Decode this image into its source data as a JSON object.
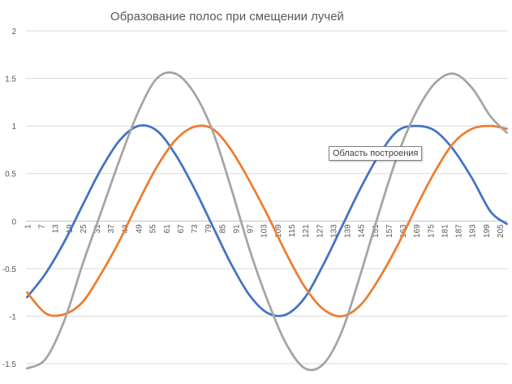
{
  "chart_data": {
    "type": "line",
    "title": "Образование полос при смещении лучей",
    "ylim": [
      -1.5,
      2
    ],
    "yticks": [
      "-1.5",
      "-1",
      "-0.5",
      "0",
      "0.5",
      "1",
      "1.5",
      "2"
    ],
    "yticks_values": [
      -1.5,
      -1,
      -0.5,
      0,
      0.5,
      1,
      1.5,
      2
    ],
    "x_first": 1,
    "x_last": 208,
    "x_step_labels": 6,
    "xticks": [
      "1",
      "7",
      "13",
      "19",
      "25",
      "31",
      "37",
      "43",
      "49",
      "55",
      "61",
      "67",
      "73",
      "79",
      "85",
      "91",
      "97",
      "103",
      "109",
      "115",
      "121",
      "127",
      "133",
      "139",
      "145",
      "151",
      "157",
      "163",
      "169",
      "175",
      "181",
      "187",
      "193",
      "199",
      "205"
    ],
    "grid": "horizontal",
    "legend": "none",
    "series": [
      {
        "color": "#4472C4",
        "x": [
          1,
          9,
          17,
          25,
          33,
          41,
          49,
          57,
          65,
          73,
          81,
          89,
          97,
          105,
          113,
          121,
          129,
          137,
          145,
          153,
          161,
          169,
          177,
          185,
          193,
          201,
          208
        ],
        "values": [
          -0.8,
          -0.55,
          -0.22,
          0.17,
          0.55,
          0.85,
          1.0,
          0.95,
          0.7,
          0.35,
          -0.05,
          -0.45,
          -0.78,
          -0.97,
          -0.98,
          -0.8,
          -0.45,
          -0.05,
          0.35,
          0.7,
          0.95,
          1.0,
          0.95,
          0.75,
          0.45,
          0.1,
          -0.03
        ]
      },
      {
        "color": "#ED7D31",
        "x": [
          1,
          9,
          17,
          25,
          33,
          41,
          49,
          57,
          65,
          73,
          81,
          89,
          97,
          105,
          113,
          121,
          129,
          137,
          145,
          153,
          161,
          169,
          177,
          185,
          193,
          201,
          208
        ],
        "values": [
          -0.75,
          -0.97,
          -0.98,
          -0.85,
          -0.55,
          -0.2,
          0.2,
          0.57,
          0.85,
          0.99,
          0.97,
          0.75,
          0.42,
          0.05,
          -0.35,
          -0.7,
          -0.93,
          -1.0,
          -0.88,
          -0.6,
          -0.25,
          0.15,
          0.52,
          0.82,
          0.97,
          1.0,
          0.97
        ]
      },
      {
        "color": "#A5A5A5",
        "x": [
          1,
          9,
          17,
          25,
          33,
          41,
          49,
          57,
          65,
          73,
          81,
          89,
          97,
          105,
          113,
          121,
          129,
          137,
          145,
          153,
          161,
          169,
          177,
          185,
          193,
          201,
          208
        ],
        "values": [
          -1.55,
          -1.45,
          -1.05,
          -0.45,
          0.1,
          0.65,
          1.15,
          1.5,
          1.55,
          1.35,
          0.95,
          0.35,
          -0.3,
          -0.85,
          -1.3,
          -1.55,
          -1.5,
          -1.15,
          -0.55,
          0.1,
          0.7,
          1.15,
          1.45,
          1.55,
          1.4,
          1.1,
          0.93
        ]
      }
    ],
    "tooltip_text": "Область построения"
  }
}
